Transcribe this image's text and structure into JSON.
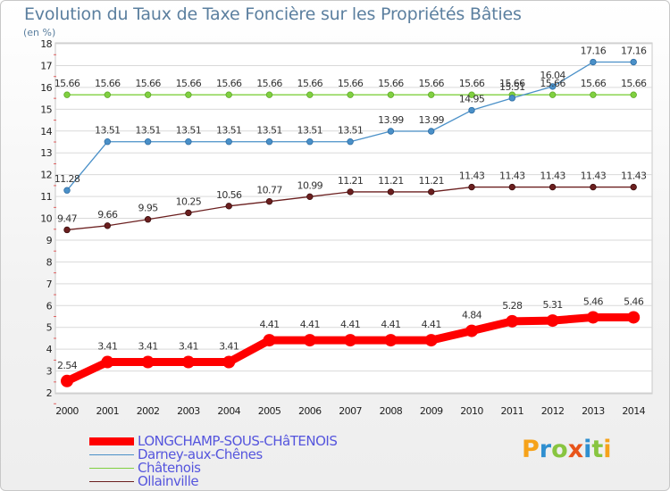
{
  "chart_data": {
    "type": "line",
    "title": "Evolution du Taux de Taxe Foncière sur les Propriétés Bâties",
    "ylabel": "(en %)",
    "xlabel": "",
    "categories": [
      "2000",
      "2001",
      "2002",
      "2003",
      "2004",
      "2005",
      "2006",
      "2007",
      "2008",
      "2009",
      "2010",
      "2011",
      "2012",
      "2013",
      "2014"
    ],
    "y_ticks": [
      2,
      3,
      4,
      5,
      6,
      7,
      8,
      9,
      10,
      11,
      12,
      13,
      14,
      15,
      16,
      17,
      18
    ],
    "ylim": [
      2,
      18
    ],
    "series": [
      {
        "name": "LONGCHAMP-SOUS-CHâTENOIS",
        "color": "#ff0000",
        "labels": [
          "2.54",
          "3.41",
          "3.41",
          "3.41",
          "3.41",
          "4.41",
          "4.41",
          "4.41",
          "4.41",
          "4.41",
          "4.84",
          "5.28",
          "5.31",
          "5.46",
          "5.46"
        ]
      },
      {
        "name": "Darney-aux-Chênes",
        "color": "#4a90c8",
        "labels": [
          "11.28",
          "13.51",
          "13.51",
          "13.51",
          "13.51",
          "13.51",
          "13.51",
          "13.51",
          "13.99",
          "13.99",
          "14.95",
          "15.51",
          "16.04",
          "17.16",
          "17.16"
        ]
      },
      {
        "name": "Châtenois",
        "color": "#80d040",
        "labels": [
          "15.66",
          "15.66",
          "15.66",
          "15.66",
          "15.66",
          "15.66",
          "15.66",
          "15.66",
          "15.66",
          "15.66",
          "15.66",
          "15.66",
          "15.66",
          "15.66",
          "15.66"
        ]
      },
      {
        "name": "Ollainville",
        "color": "#6b1f1f",
        "labels": [
          "9.47",
          "9.66",
          "9.95",
          "10.25",
          "10.56",
          "10.77",
          "10.99",
          "11.21",
          "11.21",
          "11.21",
          "11.43",
          "11.43",
          "11.43",
          "11.43",
          "11.43"
        ]
      }
    ]
  },
  "logo": {
    "text": "Proxiti",
    "letters": [
      "P",
      "r",
      "o",
      "x",
      "i",
      "t",
      "i"
    ]
  }
}
